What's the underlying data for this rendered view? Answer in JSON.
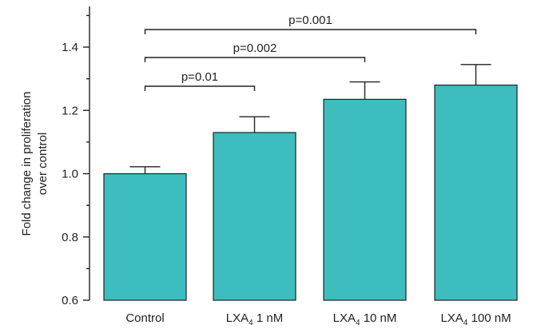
{
  "chart_data": {
    "type": "bar",
    "categories": [
      {
        "main": "Control",
        "sub": "",
        "rest": ""
      },
      {
        "main": "LXA",
        "sub": "4",
        "rest": " 1 nM"
      },
      {
        "main": "LXA",
        "sub": "4",
        "rest": " 10 nM"
      },
      {
        "main": "LXA",
        "sub": "4",
        "rest": " 100 nM"
      }
    ],
    "values": [
      1.0,
      1.13,
      1.235,
      1.28
    ],
    "errors": [
      0.022,
      0.05,
      0.055,
      0.065
    ],
    "ylabel_line1": "Fold change in proliferation",
    "ylabel_line2": "over control",
    "xlabel": "",
    "ylim": [
      0.6,
      1.5
    ],
    "yticks": [
      "0.6",
      "0.8",
      "1.0",
      "1.2",
      "1.4"
    ],
    "bar_color": "#3dbdbd",
    "grid": false,
    "comparisons": [
      {
        "from": 0,
        "to": 1,
        "label": "p=0.01",
        "level": 1
      },
      {
        "from": 0,
        "to": 2,
        "label": "p=0.002",
        "level": 2
      },
      {
        "from": 0,
        "to": 3,
        "label": "p=0.001",
        "level": 3
      }
    ]
  }
}
